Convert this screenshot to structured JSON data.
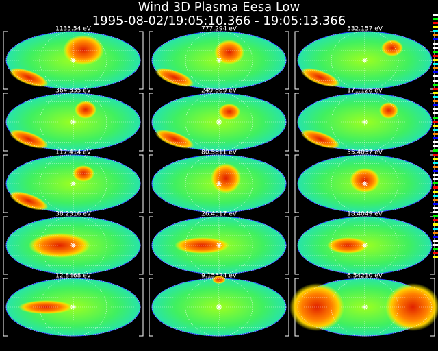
{
  "header": {
    "title": "Wind 3D Plasma  Eesa Low",
    "subtitle": "1995-08-02/19:05:10.366 - 19:05:13.366"
  },
  "panels": [
    {
      "label": "1135.54 eV"
    },
    {
      "label": "777.294 eV"
    },
    {
      "label": "532.157 eV"
    },
    {
      "label": "364.335 eV"
    },
    {
      "label": "249.889 eV"
    },
    {
      "label": "171.128 eV"
    },
    {
      "label": "117.414 eV"
    },
    {
      "label": "80.5811 eV"
    },
    {
      "label": "55.4037 eV"
    },
    {
      "label": "38.2316 eV"
    },
    {
      "label": "26.4517 eV"
    },
    {
      "label": "18.4049 eV"
    },
    {
      "label": "12.8468 eV"
    },
    {
      "label": "9.15524 eV"
    },
    {
      "label": "6.54210 eV"
    }
  ]
}
